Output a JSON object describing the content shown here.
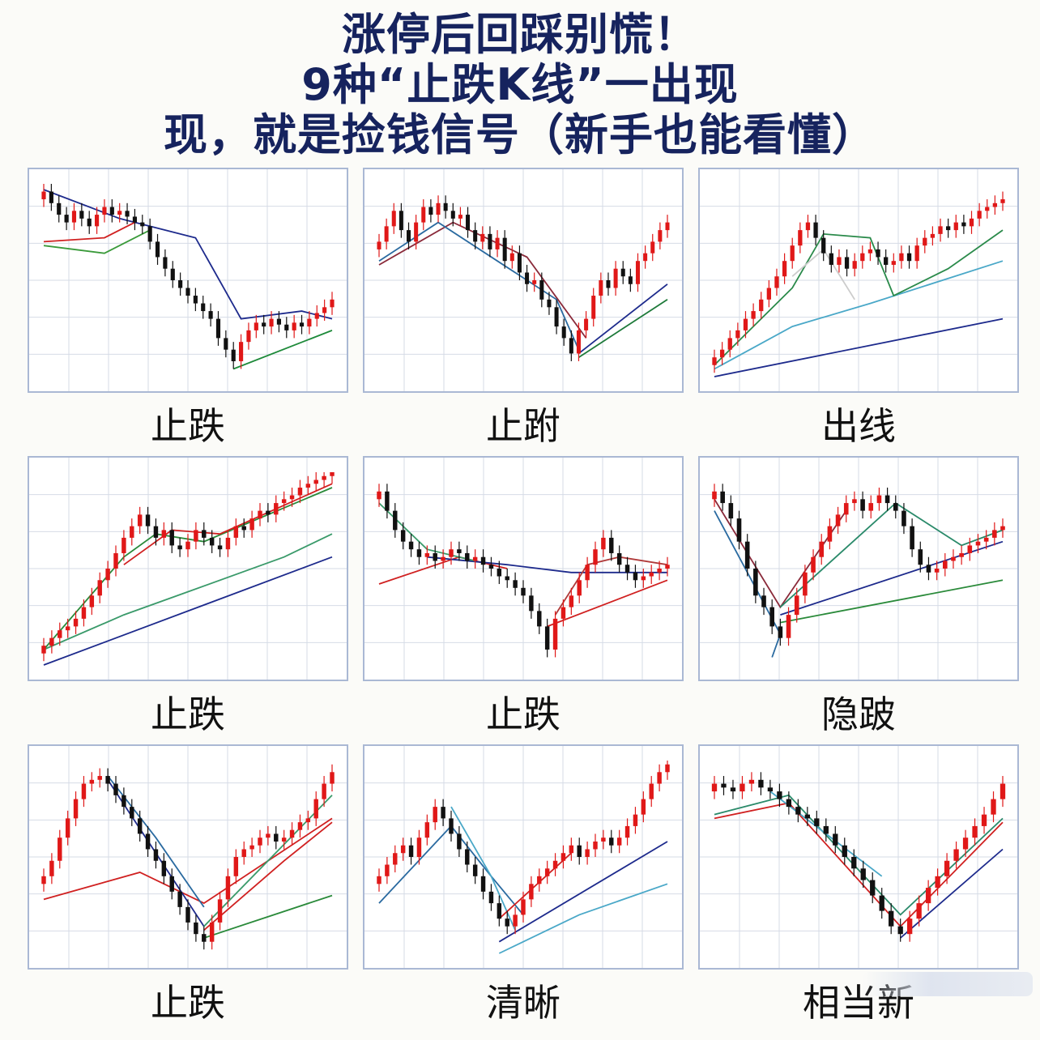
{
  "title_lines": [
    "涨停后回踩别慌！",
    "9种“止跌K线”一出现",
    "现，就是捡钱信号（新手也能看懂）"
  ],
  "colors": {
    "up": "#e01818",
    "down": "#111111",
    "grid": "#d6dbe6",
    "frame": "#aab8d4",
    "title": "#16235e"
  },
  "chart_data": [
    {
      "type": "candlestick",
      "caption": "止跌",
      "close": [
        96,
        90,
        84,
        80,
        86,
        82,
        78,
        84,
        88,
        84,
        86,
        83,
        80,
        78,
        70,
        62,
        56,
        50,
        46,
        42,
        38,
        34,
        30,
        20,
        14,
        8,
        18,
        24,
        28,
        26,
        30,
        27,
        24,
        28,
        26,
        30,
        33,
        36,
        40
      ],
      "lines": [
        {
          "color": "#1d2a8c",
          "values": [
            [
              0,
              97
            ],
            [
              10,
              82
            ],
            [
              20,
              72
            ],
            [
              26,
              30
            ],
            [
              34,
              34
            ],
            [
              38,
              30
            ]
          ]
        },
        {
          "color": "#3a9a3a",
          "values": [
            [
              0,
              68
            ],
            [
              8,
              64
            ],
            [
              14,
              76
            ]
          ]
        },
        {
          "color": "#d02020",
          "values": [
            [
              0,
              70
            ],
            [
              8,
              72
            ],
            [
              12,
              80
            ]
          ]
        },
        {
          "color": "#1e8a3a",
          "values": [
            [
              25,
              4
            ],
            [
              38,
              24
            ]
          ]
        }
      ]
    },
    {
      "type": "candlestick",
      "caption": "止跗",
      "close": [
        70,
        78,
        86,
        76,
        70,
        80,
        88,
        84,
        90,
        86,
        82,
        84,
        76,
        70,
        74,
        66,
        72,
        60,
        64,
        54,
        48,
        50,
        40,
        36,
        26,
        20,
        12,
        24,
        30,
        42,
        50,
        46,
        56,
        52,
        48,
        60,
        64,
        70,
        76,
        80
      ],
      "lines": [
        {
          "color": "#8a2a3a",
          "values": [
            [
              0,
              58
            ],
            [
              10,
              80
            ],
            [
              20,
              62
            ],
            [
              28,
              20
            ]
          ]
        },
        {
          "color": "#2a6aa0",
          "values": [
            [
              0,
              60
            ],
            [
              8,
              80
            ],
            [
              24,
              40
            ],
            [
              27,
              14
            ]
          ]
        },
        {
          "color": "#1d2a8c",
          "values": [
            [
              27,
              12
            ],
            [
              39,
              48
            ]
          ]
        },
        {
          "color": "#1e7a3a",
          "values": [
            [
              27,
              10
            ],
            [
              39,
              40
            ]
          ]
        }
      ]
    },
    {
      "type": "candlestick",
      "caption": "出线",
      "close": [
        10,
        14,
        20,
        24,
        30,
        34,
        40,
        46,
        52,
        60,
        68,
        76,
        80,
        72,
        64,
        58,
        62,
        56,
        60,
        64,
        66,
        62,
        58,
        60,
        64,
        60,
        68,
        72,
        74,
        78,
        76,
        80,
        78,
        82,
        86,
        88,
        90,
        92
      ],
      "lines": [
        {
          "color": "#1d2a8c",
          "values": [
            [
              0,
              0
            ],
            [
              37,
              30
            ]
          ]
        },
        {
          "color": "#4aa8c8",
          "values": [
            [
              0,
              4
            ],
            [
              10,
              26
            ],
            [
              20,
              38
            ],
            [
              37,
              60
            ]
          ]
        },
        {
          "color": "#2a8a4a",
          "values": [
            [
              0,
              6
            ],
            [
              10,
              46
            ],
            [
              14,
              74
            ],
            [
              20,
              72
            ],
            [
              23,
              42
            ],
            [
              30,
              56
            ],
            [
              37,
              76
            ]
          ]
        },
        {
          "color": "#cccccc",
          "values": [
            [
              10,
              52
            ],
            [
              14,
              66
            ],
            [
              18,
              40
            ]
          ]
        }
      ]
    },
    {
      "type": "candlestick",
      "caption": "止跌",
      "close": [
        10,
        14,
        18,
        20,
        24,
        30,
        36,
        44,
        50,
        58,
        66,
        72,
        78,
        72,
        66,
        70,
        62,
        60,
        64,
        70,
        66,
        62,
        60,
        66,
        72,
        70,
        76,
        80,
        78,
        84,
        86,
        88,
        92,
        94,
        96,
        98,
        100
      ],
      "lines": [
        {
          "color": "#1d2a8c",
          "values": [
            [
              0,
              0
            ],
            [
              36,
              56
            ]
          ]
        },
        {
          "color": "#3a9a6a",
          "values": [
            [
              0,
              8
            ],
            [
              10,
              26
            ],
            [
              18,
              38
            ],
            [
              30,
              56
            ],
            [
              36,
              68
            ]
          ]
        },
        {
          "color": "#2a8a3a",
          "values": [
            [
              0,
              8
            ],
            [
              10,
              56
            ],
            [
              14,
              68
            ],
            [
              20,
              64
            ],
            [
              36,
              92
            ]
          ]
        },
        {
          "color": "#d02020",
          "values": [
            [
              10,
              52
            ],
            [
              16,
              70
            ],
            [
              22,
              68
            ],
            [
              36,
              94
            ]
          ]
        }
      ]
    },
    {
      "type": "candlestick",
      "caption": "止跌",
      "close": [
        90,
        80,
        70,
        64,
        60,
        56,
        58,
        54,
        56,
        60,
        58,
        54,
        56,
        52,
        50,
        46,
        44,
        40,
        36,
        28,
        20,
        8,
        24,
        30,
        36,
        44,
        52,
        60,
        66,
        58,
        52,
        48,
        44,
        46,
        48,
        50,
        52
      ],
      "lines": [
        {
          "color": "#d02020",
          "values": [
            [
              0,
              42
            ],
            [
              10,
              56
            ],
            [
              16,
              50
            ]
          ]
        },
        {
          "color": "#1d2a8c",
          "values": [
            [
              6,
              56
            ],
            [
              16,
              52
            ],
            [
              24,
              48
            ],
            [
              36,
              48
            ]
          ]
        },
        {
          "color": "#3a9a6a",
          "values": [
            [
              0,
              84
            ],
            [
              6,
              60
            ],
            [
              12,
              54
            ]
          ]
        },
        {
          "color": "#d02020",
          "values": [
            [
              21,
              20
            ],
            [
              36,
              44
            ]
          ]
        },
        {
          "color": "#b03a3a",
          "values": [
            [
              22,
              26
            ],
            [
              26,
              52
            ],
            [
              30,
              56
            ],
            [
              36,
              52
            ]
          ]
        }
      ]
    },
    {
      "type": "candlestick",
      "caption": "隐跛",
      "close": [
        90,
        84,
        76,
        64,
        50,
        36,
        30,
        20,
        14,
        26,
        36,
        48,
        56,
        64,
        72,
        78,
        84,
        86,
        80,
        84,
        88,
        84,
        80,
        72,
        60,
        52,
        48,
        50,
        54,
        56,
        58,
        62,
        64,
        66,
        70,
        72
      ],
      "lines": [
        {
          "color": "#8a2a3a",
          "values": [
            [
              0,
              86
            ],
            [
              8,
              30
            ],
            [
              16,
              80
            ]
          ]
        },
        {
          "color": "#2a6aa0",
          "values": [
            [
              0,
              80
            ],
            [
              8,
              16
            ],
            [
              7,
              4
            ]
          ]
        },
        {
          "color": "#1d2a8c",
          "values": [
            [
              8,
              26
            ],
            [
              35,
              64
            ]
          ]
        },
        {
          "color": "#2a8a3a",
          "values": [
            [
              8,
              22
            ],
            [
              35,
              44
            ]
          ]
        },
        {
          "color": "#2a8a6a",
          "values": [
            [
              8,
              30
            ],
            [
              22,
              84
            ],
            [
              30,
              62
            ],
            [
              35,
              70
            ]
          ]
        }
      ]
    },
    {
      "type": "candlestick",
      "caption": "止跌",
      "close": [
        40,
        48,
        60,
        70,
        80,
        88,
        90,
        92,
        88,
        82,
        76,
        70,
        62,
        54,
        48,
        40,
        32,
        24,
        16,
        10,
        6,
        16,
        28,
        40,
        50,
        54,
        56,
        60,
        62,
        58,
        60,
        64,
        68,
        70,
        80,
        88,
        94
      ],
      "lines": [
        {
          "color": "#d02020",
          "values": [
            [
              0,
              28
            ],
            [
              12,
              42
            ],
            [
              20,
              26
            ],
            [
              36,
              70
            ]
          ]
        },
        {
          "color": "#1d2a8c",
          "values": [
            [
              8,
              90
            ],
            [
              20,
              14
            ]
          ]
        },
        {
          "color": "#2a8a3a",
          "values": [
            [
              20,
              8
            ],
            [
              36,
              30
            ]
          ]
        },
        {
          "color": "#d02020",
          "values": [
            [
              20,
              12
            ],
            [
              30,
              48
            ],
            [
              36,
              68
            ]
          ]
        },
        {
          "color": "#2a6aa0",
          "values": [
            [
              8,
              92
            ],
            [
              14,
              60
            ],
            [
              20,
              24
            ]
          ]
        },
        {
          "color": "#3a9a6a",
          "values": [
            [
              20,
              14
            ],
            [
              36,
              82
            ]
          ]
        }
      ]
    },
    {
      "type": "candlestick",
      "caption": "清晰",
      "close": [
        40,
        46,
        52,
        56,
        50,
        60,
        68,
        76,
        70,
        62,
        54,
        46,
        40,
        32,
        26,
        18,
        14,
        20,
        28,
        36,
        40,
        44,
        48,
        52,
        56,
        50,
        54,
        58,
        60,
        56,
        60,
        66,
        72,
        80,
        88,
        94,
        98
      ],
      "lines": [
        {
          "color": "#1d2a8c",
          "values": [
            [
              15,
              6
            ],
            [
              36,
              58
            ]
          ]
        },
        {
          "color": "#4aa8c8",
          "values": [
            [
              15,
              0
            ],
            [
              25,
              20
            ],
            [
              36,
              36
            ]
          ]
        },
        {
          "color": "#2a6aa0",
          "values": [
            [
              0,
              26
            ],
            [
              9,
              66
            ],
            [
              14,
              40
            ],
            [
              18,
              20
            ]
          ]
        },
        {
          "color": "#4aa8c8",
          "values": [
            [
              9,
              76
            ],
            [
              14,
              40
            ],
            [
              17,
              12
            ]
          ]
        },
        {
          "color": "#d02020",
          "values": [
            [
              15,
              18
            ],
            [
              24,
              52
            ]
          ]
        }
      ]
    },
    {
      "type": "candlestick",
      "caption": "相当新",
      "close": [
        88,
        86,
        84,
        88,
        90,
        86,
        84,
        80,
        76,
        72,
        70,
        66,
        62,
        56,
        50,
        44,
        38,
        30,
        22,
        14,
        10,
        18,
        26,
        34,
        40,
        48,
        54,
        60,
        66,
        72,
        80,
        88
      ],
      "lines": [
        {
          "color": "#d02020",
          "values": [
            [
              0,
              70
            ],
            [
              8,
              78
            ],
            [
              20,
              14
            ],
            [
              31,
              68
            ]
          ]
        },
        {
          "color": "#2a8a6a",
          "values": [
            [
              0,
              72
            ],
            [
              8,
              82
            ],
            [
              20,
              20
            ],
            [
              31,
              70
            ]
          ]
        },
        {
          "color": "#4aa8c8",
          "values": [
            [
              6,
              84
            ],
            [
              18,
              40
            ]
          ]
        },
        {
          "color": "#1d2a8c",
          "values": [
            [
              20,
              8
            ],
            [
              31,
              54
            ]
          ]
        }
      ]
    }
  ]
}
